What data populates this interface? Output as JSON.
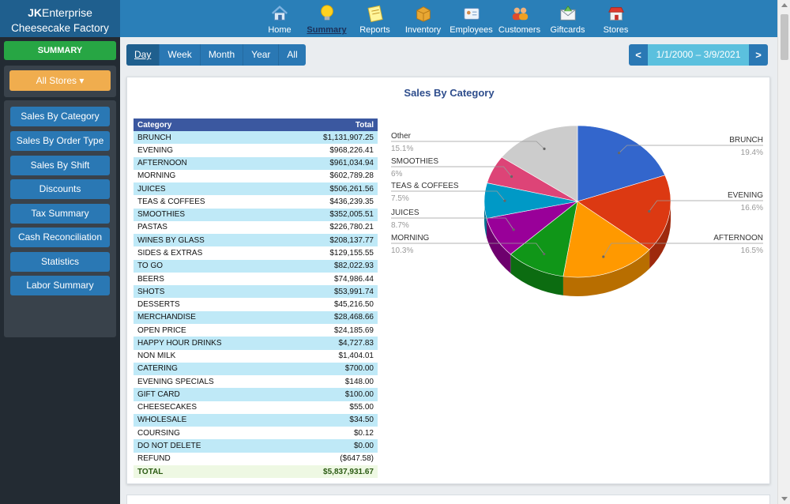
{
  "brand": {
    "company_bold": "JK",
    "company_rest": "Enterprise",
    "location": "Cheesecake Factory"
  },
  "nav": [
    {
      "label": "Home",
      "icon": "home-icon",
      "active": false
    },
    {
      "label": "Summary",
      "icon": "lightbulb-icon",
      "active": true
    },
    {
      "label": "Reports",
      "icon": "notepad-icon",
      "active": false
    },
    {
      "label": "Inventory",
      "icon": "box-icon",
      "active": false
    },
    {
      "label": "Employees",
      "icon": "id-card-icon",
      "active": false
    },
    {
      "label": "Customers",
      "icon": "people-icon",
      "active": false
    },
    {
      "label": "Giftcards",
      "icon": "envelope-icon",
      "active": false
    },
    {
      "label": "Stores",
      "icon": "shop-icon",
      "active": false
    }
  ],
  "sidebar": {
    "summary_label": "SUMMARY",
    "stores_label": "All Stores ▾",
    "reports": [
      "Sales By Category",
      "Sales By Order Type",
      "Sales By Shift",
      "Discounts",
      "Tax Summary",
      "Cash Reconciliation",
      "Statistics",
      "Labor Summary"
    ]
  },
  "period_tabs": [
    {
      "label": "Day",
      "active": true
    },
    {
      "label": "Week",
      "active": false
    },
    {
      "label": "Month",
      "active": false
    },
    {
      "label": "Year",
      "active": false
    },
    {
      "label": "All",
      "active": false
    }
  ],
  "date_range": {
    "prev": "<",
    "range": "1/1/2000 – 3/9/2021",
    "next": ">"
  },
  "panel": {
    "title": "Sales By Category",
    "table": {
      "headers": [
        "Category",
        "Total"
      ],
      "rows": [
        [
          "BRUNCH",
          "$1,131,907.25"
        ],
        [
          "EVENING",
          "$968,226.41"
        ],
        [
          "AFTERNOON",
          "$961,034.94"
        ],
        [
          "MORNING",
          "$602,789.28"
        ],
        [
          "JUICES",
          "$506,261.56"
        ],
        [
          "TEAS & COFFEES",
          "$436,239.35"
        ],
        [
          "SMOOTHIES",
          "$352,005.51"
        ],
        [
          "PASTAS",
          "$226,780.21"
        ],
        [
          "WINES BY GLASS",
          "$208,137.77"
        ],
        [
          "SIDES & EXTRAS",
          "$129,155.55"
        ],
        [
          "TO GO",
          "$82,022.93"
        ],
        [
          "BEERS",
          "$74,986.44"
        ],
        [
          "SHOTS",
          "$53,991.74"
        ],
        [
          "DESSERTS",
          "$45,216.50"
        ],
        [
          "MERCHANDISE",
          "$28,468.66"
        ],
        [
          "OPEN PRICE",
          "$24,185.69"
        ],
        [
          "HAPPY HOUR DRINKS",
          "$4,727.83"
        ],
        [
          "NON MILK",
          "$1,404.01"
        ],
        [
          "CATERING",
          "$700.00"
        ],
        [
          "EVENING SPECIALS",
          "$148.00"
        ],
        [
          "GIFT CARD",
          "$100.00"
        ],
        [
          "CHEESECAKES",
          "$55.00"
        ],
        [
          "WHOLESALE",
          "$34.50"
        ],
        [
          "COURSING",
          "$0.12"
        ],
        [
          "DO NOT DELETE",
          "$0.00"
        ],
        [
          "REFUND",
          "($647.58)"
        ]
      ],
      "total": [
        "TOTAL",
        "$5,837,931.67"
      ]
    }
  },
  "chart_data": {
    "type": "pie",
    "title": "Sales By Category",
    "slices": [
      {
        "label": "BRUNCH",
        "pct_label": "19.4%",
        "value": 19.4,
        "color": "#3366cc"
      },
      {
        "label": "EVENING",
        "pct_label": "16.6%",
        "value": 16.6,
        "color": "#dc3912"
      },
      {
        "label": "AFTERNOON",
        "pct_label": "16.5%",
        "value": 16.5,
        "color": "#ff9900"
      },
      {
        "label": "MORNING",
        "pct_label": "10.3%",
        "value": 10.3,
        "color": "#109618"
      },
      {
        "label": "JUICES",
        "pct_label": "8.7%",
        "value": 8.7,
        "color": "#990099"
      },
      {
        "label": "TEAS & COFFEES",
        "pct_label": "7.5%",
        "value": 7.5,
        "color": "#0099c6"
      },
      {
        "label": "SMOOTHIES",
        "pct_label": "6%",
        "value": 6.0,
        "color": "#dd4477"
      },
      {
        "label": "Other",
        "pct_label": "15.1%",
        "value": 15.1,
        "color": "#cccccc"
      }
    ],
    "legend": "labels-with-leader-lines"
  }
}
